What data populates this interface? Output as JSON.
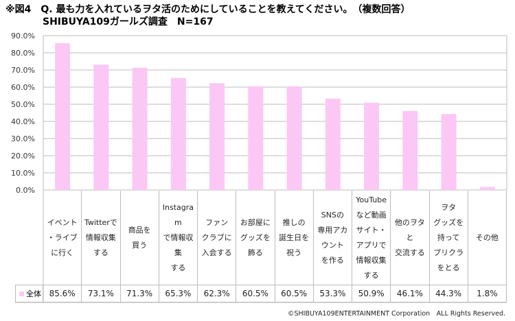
{
  "header": {
    "title_line1": "※図4　Q. 最も力を入れているヲタ活のためにしていることを教えてください。　（複数回答）",
    "title_line2": "SHIBUYA109ガールズ調査　N=167"
  },
  "chart_data": {
    "type": "bar",
    "categories": [
      "イベント\n・ライブ\nに行く",
      "Twitterで\n情報収集\nする",
      "商品を\n買う",
      "Instagra\nm\nで情報収\n集\nする",
      "ファン\nクラブに\n入会する",
      "お部屋に\nグッズを\n飾る",
      "推しの\n誕生日を\n祝う",
      "SNSの\n専用アカ\nウント\nを作る",
      "YouTube\nなど動画\nサイト・\nアプリで\n情報収集\nする",
      "他のヲタ\nと\n交流する",
      "ヲタ\nグッズを\n持って\nプリクラ\nをとる",
      "その他"
    ],
    "series": [
      {
        "name": "全体",
        "values": [
          85.6,
          73.1,
          71.3,
          65.3,
          62.3,
          60.5,
          60.5,
          53.3,
          50.9,
          46.1,
          44.3,
          1.8
        ],
        "color": "#fbc8f5"
      }
    ],
    "value_labels": [
      "85.6%",
      "73.1%",
      "71.3%",
      "65.3%",
      "62.3%",
      "60.5%",
      "60.5%",
      "53.3%",
      "50.9%",
      "46.1%",
      "44.3%",
      "1.8%"
    ],
    "yticks": [
      "0.0%",
      "10.0%",
      "20.0%",
      "30.0%",
      "40.0%",
      "50.0%",
      "60.0%",
      "70.0%",
      "80.0%",
      "90.0%"
    ],
    "ylim": [
      0,
      90
    ],
    "grid": true,
    "legend": "data-table-left"
  },
  "footer": {
    "copyright": "©SHIBUYA109ENTERTAINMENT Corporation　ALL Rights Reserved."
  }
}
